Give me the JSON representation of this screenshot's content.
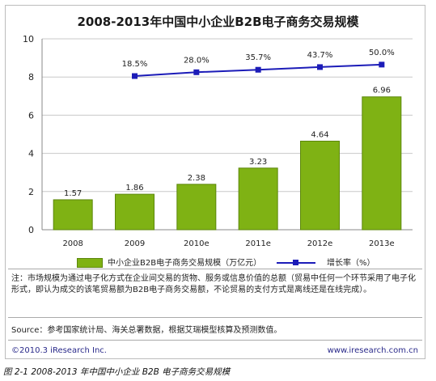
{
  "title": "2008-2013年中国中小企业B2B电子商务交易规模",
  "chart_data": {
    "type": "bar",
    "categories": [
      "2008",
      "2009",
      "2010e",
      "2011e",
      "2012e",
      "2013e"
    ],
    "values": [
      1.57,
      1.86,
      2.38,
      3.23,
      4.64,
      6.96
    ],
    "value_labels": [
      "1.57",
      "1.86",
      "2.38",
      "3.23",
      "4.64",
      "6.96"
    ],
    "y_ticks": [
      "0",
      "2",
      "4",
      "6",
      "8",
      "10"
    ],
    "ylim": [
      0,
      10
    ],
    "line_series": {
      "name": "增长率（%）",
      "categories": [
        "2009",
        "2010e",
        "2011e",
        "2012e",
        "2013e"
      ],
      "values": [
        18.5,
        28.0,
        35.7,
        43.7,
        50.0
      ],
      "labels": [
        "18.5%",
        "28.0%",
        "35.7%",
        "43.7%",
        "50.0%"
      ],
      "plot_y": [
        8.05,
        8.25,
        8.38,
        8.52,
        8.65
      ]
    },
    "bar_series_name": "中小企业B2B电子商务交易规模（万亿元）",
    "grid": true,
    "legend_placement": "bottom",
    "colors": {
      "bar": "#7fb214",
      "bar_edge": "#5c870b",
      "line": "#1c1cb8",
      "grid": "#c8c8c8"
    }
  },
  "note": "注：市场规模为通过电子化方式在企业间交易的货物、服务或信息价值的总额（贸易中任何一个环节采用了电子化形式，即认为成交的该笔贸易额为B2B电子商务交易额，不论贸易的支付方式是离线还是在线完成）。",
  "source": "Source：参考国家统计局、海关总署数据，根据艾瑞模型核算及预测数值。",
  "footer_left": "©2010.3 iResearch Inc.",
  "footer_right": "www.iresearch.com.cn",
  "caption": "图 2-1 2008-2013 年中国中小企业 B2B 电子商务交易规模"
}
